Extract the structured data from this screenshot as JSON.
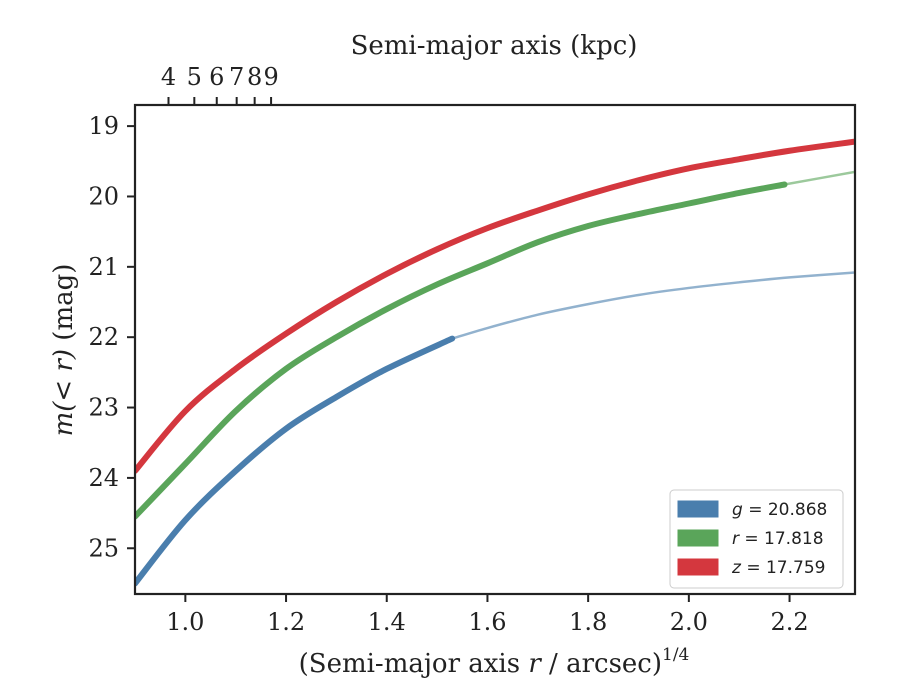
{
  "chart_data": {
    "type": "line",
    "xlabel": "(Semi-major axis r / arcsec)^{1/4}",
    "xlabel_prefix": "(Semi-major axis ",
    "xlabel_var": "r",
    "xlabel_mid": " / arcsec)",
    "xlabel_sup": "1/4",
    "ylabel": "m(<r) (mag)",
    "ylabel_italic": "m(< r)",
    "ylabel_rest": " (mag)",
    "top_xlabel": "Semi-major axis (kpc)",
    "xlim": [
      0.9,
      2.33
    ],
    "ylim": [
      25.65,
      18.7
    ],
    "y_inverted": true,
    "x_ticks": [
      "1.0",
      "1.2",
      "1.4",
      "1.6",
      "1.8",
      "2.0",
      "2.2"
    ],
    "y_ticks": [
      "19",
      "20",
      "21",
      "22",
      "23",
      "24",
      "25"
    ],
    "top_x_ticks": [
      "4",
      "5",
      "6",
      "7",
      "8",
      "9"
    ],
    "top_axis": "r_kpc = 4.985 * x^4 - 0.35",
    "legend_position": "lower right",
    "series": [
      {
        "name": "g = 20.868",
        "legend_var": "g",
        "legend_value": "= 20.868",
        "color": "#4a7ead",
        "solid_until": 1.53,
        "x": [
          0.9,
          1.0,
          1.1,
          1.2,
          1.3,
          1.4,
          1.53,
          1.6,
          1.7,
          1.8,
          1.9,
          2.0,
          2.1,
          2.2,
          2.33
        ],
        "y": [
          25.5,
          24.6,
          23.9,
          23.3,
          22.85,
          22.45,
          22.02,
          21.87,
          21.68,
          21.53,
          21.4,
          21.3,
          21.22,
          21.15,
          21.08
        ]
      },
      {
        "name": "r = 17.818",
        "legend_var": "r",
        "legend_value": "= 17.818",
        "color": "#5aa55a",
        "solid_until": 2.19,
        "x": [
          0.9,
          1.0,
          1.1,
          1.2,
          1.3,
          1.4,
          1.5,
          1.6,
          1.7,
          1.8,
          1.9,
          2.0,
          2.1,
          2.19,
          2.33
        ],
        "y": [
          24.55,
          23.8,
          23.05,
          22.45,
          22.0,
          21.6,
          21.25,
          20.95,
          20.65,
          20.42,
          20.25,
          20.1,
          19.95,
          19.83,
          19.65
        ]
      },
      {
        "name": "z = 17.759",
        "legend_var": "z",
        "legend_value": "= 17.759",
        "color": "#d4373e",
        "solid_until": 2.33,
        "x": [
          0.9,
          1.0,
          1.1,
          1.2,
          1.3,
          1.4,
          1.5,
          1.6,
          1.7,
          1.8,
          1.9,
          2.0,
          2.1,
          2.2,
          2.33
        ],
        "y": [
          23.9,
          23.05,
          22.45,
          21.95,
          21.5,
          21.1,
          20.75,
          20.45,
          20.2,
          19.97,
          19.77,
          19.6,
          19.47,
          19.35,
          19.22
        ]
      }
    ]
  }
}
